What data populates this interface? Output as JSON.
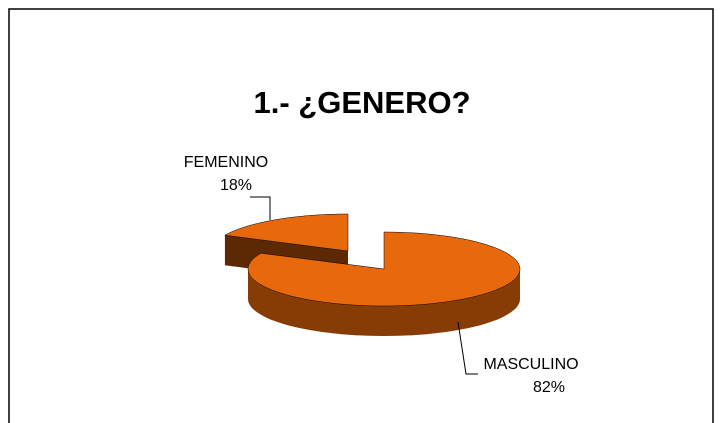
{
  "chart_data": {
    "type": "pie",
    "title": "1.- ¿GENERO?",
    "categories": [
      "FEMENINO",
      "MASCULINO"
    ],
    "values": [
      18,
      82
    ],
    "value_labels": [
      "18%",
      "82%"
    ],
    "colors": [
      "#e8680c",
      "#e8680c"
    ]
  }
}
